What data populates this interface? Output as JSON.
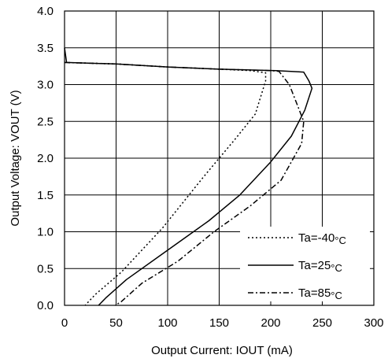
{
  "chart_data": {
    "type": "line",
    "title": "",
    "xlabel": "Output Current: IOUT (mA)",
    "ylabel": "Output Voltage: VOUT (V)",
    "xlim": [
      0,
      300
    ],
    "ylim": [
      0,
      4.0
    ],
    "xticks": [
      "0",
      "50",
      "100",
      "150",
      "200",
      "250",
      "300"
    ],
    "yticks": [
      "0.0",
      "0.5",
      "1.0",
      "1.5",
      "2.0",
      "2.5",
      "3.0",
      "3.5",
      "4.0"
    ],
    "grid": true,
    "legend_position": "bottom-right",
    "series": [
      {
        "name": "Ta=-40°C",
        "style": "dotted",
        "points": [
          [
            0,
            3.3
          ],
          [
            50,
            3.28
          ],
          [
            100,
            3.24
          ],
          [
            150,
            3.21
          ],
          [
            180,
            3.19
          ],
          [
            195,
            3.16
          ],
          [
            195,
            3.05
          ],
          [
            185,
            2.6
          ],
          [
            165,
            2.25
          ],
          [
            135,
            1.75
          ],
          [
            95,
            1.05
          ],
          [
            55,
            0.45
          ],
          [
            30,
            0.15
          ],
          [
            20,
            0.0
          ]
        ]
      },
      {
        "name": "Ta=25°C",
        "style": "solid",
        "points": [
          [
            0,
            3.5
          ],
          [
            2,
            3.3
          ],
          [
            50,
            3.28
          ],
          [
            100,
            3.24
          ],
          [
            150,
            3.21
          ],
          [
            205,
            3.19
          ],
          [
            232,
            3.17
          ],
          [
            237,
            3.05
          ],
          [
            240,
            2.95
          ],
          [
            233,
            2.65
          ],
          [
            220,
            2.3
          ],
          [
            200,
            1.95
          ],
          [
            170,
            1.5
          ],
          [
            140,
            1.15
          ],
          [
            95,
            0.7
          ],
          [
            60,
            0.35
          ],
          [
            40,
            0.1
          ],
          [
            33,
            0.0
          ]
        ]
      },
      {
        "name": "Ta=85°C",
        "style": "dashdot",
        "points": [
          [
            0,
            3.3
          ],
          [
            50,
            3.28
          ],
          [
            100,
            3.24
          ],
          [
            150,
            3.21
          ],
          [
            200,
            3.19
          ],
          [
            208,
            3.18
          ],
          [
            218,
            3.0
          ],
          [
            225,
            2.75
          ],
          [
            232,
            2.5
          ],
          [
            230,
            2.2
          ],
          [
            210,
            1.7
          ],
          [
            180,
            1.35
          ],
          [
            145,
            1.0
          ],
          [
            110,
            0.6
          ],
          [
            75,
            0.3
          ],
          [
            55,
            0.05
          ],
          [
            49,
            0.0
          ]
        ]
      }
    ],
    "legend": [
      {
        "label": "Ta=-40",
        "unit": "°C"
      },
      {
        "label": "Ta=25",
        "unit": "°C"
      },
      {
        "label": "Ta=85",
        "unit": "°C"
      }
    ]
  }
}
